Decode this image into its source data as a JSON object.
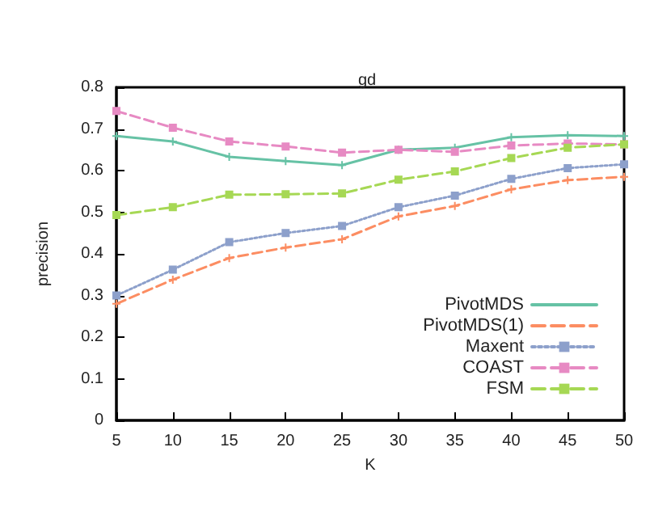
{
  "chart_data": {
    "type": "line",
    "title": "gd",
    "xlabel": "K",
    "ylabel": "precision",
    "x": [
      5,
      10,
      15,
      20,
      25,
      30,
      35,
      40,
      45,
      50
    ],
    "xlim": [
      5,
      50
    ],
    "xticks": [
      5,
      10,
      15,
      20,
      25,
      30,
      35,
      40,
      45,
      50
    ],
    "ylim": [
      0,
      0.8
    ],
    "yticks": [
      0,
      0.1,
      0.2,
      0.3,
      0.4,
      0.5,
      0.6,
      0.7,
      0.8
    ],
    "grid": false,
    "legend": "bottom right",
    "series": [
      {
        "name": "PivotMDS",
        "color": "#66c2a5",
        "marker": "cross",
        "line_style": "solid",
        "values": [
          0.683,
          0.67,
          0.633,
          0.623,
          0.613,
          0.65,
          0.655,
          0.68,
          0.685,
          0.683
        ]
      },
      {
        "name": "PivotMDS(1)",
        "color": "#fc8d62",
        "marker": "cross",
        "line_style": "dashed",
        "values": [
          0.28,
          0.338,
          0.39,
          0.415,
          0.435,
          0.49,
          0.515,
          0.555,
          0.577,
          0.585
        ]
      },
      {
        "name": "Maxent",
        "color": "#8da0cb",
        "marker": "square",
        "line_style": "dotted",
        "values": [
          0.3,
          0.362,
          0.428,
          0.45,
          0.467,
          0.512,
          0.54,
          0.58,
          0.606,
          0.615
        ]
      },
      {
        "name": "COAST",
        "color": "#e78ac3",
        "marker": "square",
        "line_style": "dashed",
        "values": [
          0.743,
          0.703,
          0.67,
          0.658,
          0.643,
          0.65,
          0.645,
          0.66,
          0.665,
          0.663
        ]
      },
      {
        "name": "FSM",
        "color": "#a6d854",
        "marker": "square",
        "line_style": "dashed",
        "values": [
          0.493,
          0.512,
          0.542,
          0.543,
          0.545,
          0.578,
          0.598,
          0.63,
          0.655,
          0.663
        ]
      }
    ]
  }
}
